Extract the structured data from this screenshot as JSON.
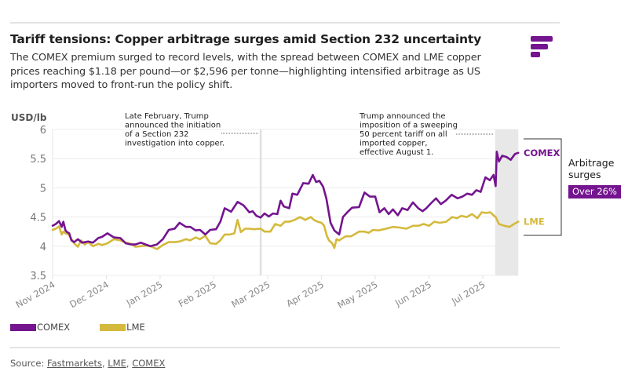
{
  "header": {
    "title": "Tariff tensions: Copper arbitrage surges amid Section 232 uncertainty",
    "subtitle": "The COMEX premium surged to record levels, with the spread between COMEX and LME copper prices reaching $1.18 per pound—or $2,596 per tonne—highlighting intensified arbitrage as US importers moved to front-run the policy shift."
  },
  "logo": {
    "icon": "fastmarkets-logo-icon",
    "color": "#74148f"
  },
  "annotations": {
    "feb": "Late February, Trump announced the initiation of a Section 232 investigation into copper.",
    "feb_lines": [
      "Late February, Trump",
      "announced the initiation",
      "of a Section 232",
      "investigation into copper."
    ],
    "jul_lines": [
      "Trump announced the",
      "imposition of a sweeping",
      "50 percent tariff on all",
      "imported copper,",
      "effective August 1."
    ],
    "arbitrage_label": "Arbitrage surges",
    "arbitrage_lines": [
      "Arbitrage",
      "surges"
    ],
    "badge": "Over 26%",
    "comex_end_label": "COMEX",
    "lme_end_label": "LME"
  },
  "legend": [
    {
      "label": "COMEX",
      "color": "#74148f"
    },
    {
      "label": "LME",
      "color": "#d4b93c"
    }
  ],
  "source": {
    "prefix": "Source: ",
    "links": [
      "Fastmarkets",
      "LME",
      "COMEX"
    ]
  },
  "chart_data": {
    "type": "line",
    "title": "Tariff tensions: Copper arbitrage surges amid Section 232 uncertainty",
    "xlabel": "",
    "ylabel": "USD/lb",
    "ylim": [
      3.5,
      6
    ],
    "yticks": [
      "3.5",
      "4",
      "4.5",
      "5",
      "5.5",
      "6"
    ],
    "ytick_values": [
      3.5,
      4,
      4.5,
      5,
      5.5,
      6
    ],
    "xticks": [
      "Nov 2024",
      "Dec 2024",
      "Jan 2025",
      "Feb 2025",
      "Mar 2025",
      "Apr 2025",
      "May 2025",
      "Jun 2025",
      "Jul 2025"
    ],
    "x_unit": "months since Nov 1, 2024",
    "xlim": [
      0,
      8.7
    ],
    "grid": true,
    "legend_position": "bottom-left",
    "event_line_x": 3.87,
    "shaded_region_x": [
      8.23,
      8.66
    ],
    "series": [
      {
        "name": "COMEX",
        "color": "#74148f",
        "x": [
          0,
          0.06,
          0.12,
          0.17,
          0.2,
          0.24,
          0.27,
          0.31,
          0.35,
          0.4,
          0.47,
          0.55,
          0.66,
          0.75,
          0.85,
          0.92,
          1.02,
          1.14,
          1.26,
          1.36,
          1.46,
          1.54,
          1.64,
          1.73,
          1.82,
          1.94,
          2.05,
          2.16,
          2.27,
          2.36,
          2.48,
          2.56,
          2.66,
          2.74,
          2.84,
          2.93,
          3.04,
          3.12,
          3.2,
          3.32,
          3.44,
          3.55,
          3.66,
          3.72,
          3.79,
          3.87,
          3.94,
          4.02,
          4.1,
          4.18,
          4.24,
          4.3,
          4.4,
          4.46,
          4.55,
          4.66,
          4.76,
          4.84,
          4.9,
          4.96,
          5.03,
          5.09,
          5.17,
          5.24,
          5.33,
          5.4,
          5.48,
          5.57,
          5.7,
          5.8,
          5.9,
          6.0,
          6.08,
          6.17,
          6.25,
          6.33,
          6.42,
          6.5,
          6.6,
          6.7,
          6.8,
          6.88,
          6.95,
          7.03,
          7.13,
          7.22,
          7.31,
          7.42,
          7.53,
          7.62,
          7.71,
          7.8,
          7.88,
          7.96,
          8.05,
          8.13,
          8.2,
          8.24,
          8.26,
          8.3,
          8.36,
          8.44,
          8.52,
          8.6,
          8.66
        ],
        "values": [
          4.35,
          4.38,
          4.43,
          4.33,
          4.42,
          4.27,
          4.24,
          4.22,
          4.1,
          4.07,
          4.12,
          4.06,
          4.08,
          4.06,
          4.14,
          4.16,
          4.22,
          4.15,
          4.14,
          4.05,
          4.03,
          4.03,
          4.06,
          4.03,
          4.0,
          4.03,
          4.12,
          4.28,
          4.3,
          4.4,
          4.33,
          4.33,
          4.27,
          4.28,
          4.2,
          4.28,
          4.29,
          4.42,
          4.65,
          4.59,
          4.76,
          4.7,
          4.58,
          4.6,
          4.52,
          4.49,
          4.56,
          4.51,
          4.56,
          4.55,
          4.78,
          4.68,
          4.65,
          4.9,
          4.88,
          5.08,
          5.07,
          5.22,
          5.1,
          5.12,
          5.02,
          4.82,
          4.4,
          4.27,
          4.2,
          4.5,
          4.58,
          4.66,
          4.67,
          4.92,
          4.85,
          4.85,
          4.58,
          4.65,
          4.55,
          4.63,
          4.53,
          4.65,
          4.62,
          4.75,
          4.65,
          4.6,
          4.65,
          4.73,
          4.82,
          4.72,
          4.78,
          4.88,
          4.82,
          4.85,
          4.9,
          4.88,
          4.96,
          4.93,
          5.18,
          5.13,
          5.22,
          5.03,
          5.62,
          5.45,
          5.55,
          5.53,
          5.48,
          5.58,
          5.6
        ]
      },
      {
        "name": "LME",
        "color": "#d4b93c",
        "x": [
          0,
          0.06,
          0.12,
          0.17,
          0.2,
          0.24,
          0.3,
          0.4,
          0.47,
          0.53,
          0.6,
          0.66,
          0.75,
          0.85,
          0.92,
          1.02,
          1.14,
          1.26,
          1.36,
          1.46,
          1.54,
          1.64,
          1.73,
          1.82,
          1.94,
          2.05,
          2.16,
          2.27,
          2.36,
          2.48,
          2.56,
          2.66,
          2.74,
          2.84,
          2.93,
          3.04,
          3.12,
          3.2,
          3.3,
          3.38,
          3.44,
          3.5,
          3.58,
          3.66,
          3.75,
          3.87,
          3.94,
          4.05,
          4.14,
          4.24,
          4.32,
          4.4,
          4.5,
          4.6,
          4.7,
          4.8,
          4.86,
          4.93,
          5.0,
          5.05,
          5.1,
          5.14,
          5.2,
          5.24,
          5.28,
          5.33,
          5.45,
          5.55,
          5.7,
          5.8,
          5.88,
          5.96,
          6.06,
          6.2,
          6.33,
          6.45,
          6.58,
          6.7,
          6.8,
          6.9,
          7.0,
          7.1,
          7.2,
          7.32,
          7.43,
          7.52,
          7.6,
          7.7,
          7.8,
          7.9,
          7.98,
          8.06,
          8.14,
          8.2,
          8.24,
          8.3,
          8.4,
          8.5,
          8.58,
          8.66
        ],
        "values": [
          4.28,
          4.3,
          4.34,
          4.2,
          4.25,
          4.22,
          4.2,
          4.05,
          3.99,
          4.1,
          4.03,
          4.07,
          4.0,
          4.04,
          4.02,
          4.05,
          4.12,
          4.1,
          4.06,
          4.04,
          3.99,
          4.0,
          4.01,
          4.0,
          3.95,
          4.02,
          4.07,
          4.07,
          4.08,
          4.12,
          4.1,
          4.15,
          4.12,
          4.18,
          4.05,
          4.04,
          4.1,
          4.2,
          4.2,
          4.22,
          4.45,
          4.24,
          4.3,
          4.3,
          4.29,
          4.3,
          4.25,
          4.25,
          4.38,
          4.35,
          4.42,
          4.42,
          4.45,
          4.5,
          4.45,
          4.5,
          4.45,
          4.42,
          4.4,
          4.35,
          4.18,
          4.1,
          4.05,
          3.97,
          4.12,
          4.1,
          4.17,
          4.17,
          4.25,
          4.25,
          4.23,
          4.28,
          4.27,
          4.3,
          4.33,
          4.32,
          4.3,
          4.35,
          4.35,
          4.38,
          4.35,
          4.42,
          4.4,
          4.42,
          4.5,
          4.48,
          4.52,
          4.5,
          4.55,
          4.48,
          4.58,
          4.57,
          4.58,
          4.53,
          4.5,
          4.38,
          4.35,
          4.33,
          4.38,
          4.42
        ]
      }
    ]
  }
}
